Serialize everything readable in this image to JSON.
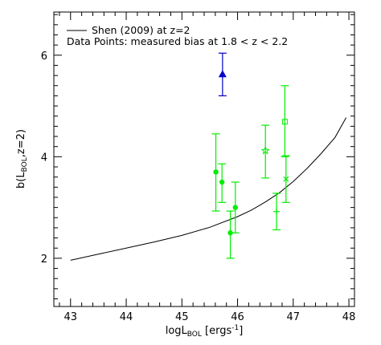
{
  "chart_data": {
    "type": "scatter",
    "title": "",
    "xlabel_main": "logL",
    "xlabel_sub": "BOL",
    "xlabel_tail": " [ergs",
    "xlabel_sup": "-1",
    "xlabel_close": "]",
    "ylabel_main": "b(L",
    "ylabel_sub": "BOL",
    "ylabel_tail": ",z=2)",
    "xlim": [
      42.7,
      48.1
    ],
    "ylim": [
      1.05,
      6.85
    ],
    "x_ticks": [
      43,
      44,
      45,
      46,
      47,
      48
    ],
    "x_tick_labels": [
      "43",
      "44",
      "45",
      "46",
      "47",
      "48"
    ],
    "y_ticks": [
      2,
      4,
      6
    ],
    "y_tick_labels": [
      "2",
      "4",
      "6"
    ],
    "legend": {
      "placement": "top-left",
      "line_entry": "Shen (2009) at z=2",
      "points_entry": "Data Points: measured bias at 1.8 < z < 2.2"
    },
    "model_curve": {
      "name": "Shen (2009) at z=2",
      "color": "#000000",
      "x": [
        43.0,
        43.5,
        44.0,
        44.5,
        45.0,
        45.5,
        46.0,
        46.25,
        46.5,
        46.75,
        47.0,
        47.25,
        47.5,
        47.75,
        47.95
      ],
      "y": [
        1.96,
        2.08,
        2.2,
        2.32,
        2.45,
        2.61,
        2.82,
        2.95,
        3.11,
        3.29,
        3.51,
        3.77,
        4.06,
        4.38,
        4.77
      ]
    },
    "series": [
      {
        "marker": "triangle-filled",
        "color": "#0000cc",
        "points": [
          {
            "x": 45.73,
            "y": 5.63,
            "ylo": 5.2,
            "yhi": 6.04
          }
        ]
      },
      {
        "marker": "circle-filled",
        "color": "#00ee00",
        "points": [
          {
            "x": 45.61,
            "y": 3.7,
            "ylo": 2.93,
            "yhi": 4.45
          },
          {
            "x": 45.72,
            "y": 3.5,
            "ylo": 3.1,
            "yhi": 3.86
          },
          {
            "x": 45.87,
            "y": 2.5,
            "ylo": 2.0,
            "yhi": 2.93
          },
          {
            "x": 45.96,
            "y": 3.0,
            "ylo": 2.5,
            "yhi": 3.5
          }
        ]
      },
      {
        "marker": "star-open",
        "color": "#00ee00",
        "points": [
          {
            "x": 46.5,
            "y": 4.12,
            "ylo": 3.58,
            "yhi": 4.62
          }
        ]
      },
      {
        "marker": "plus",
        "color": "#00ee00",
        "points": [
          {
            "x": 46.7,
            "y": 2.92,
            "ylo": 2.56,
            "yhi": 3.28
          }
        ]
      },
      {
        "marker": "square-open",
        "color": "#00ee00",
        "points": [
          {
            "x": 46.85,
            "y": 4.69,
            "ylo": 4.0,
            "yhi": 5.4
          }
        ]
      },
      {
        "marker": "x-cross",
        "color": "#00ee00",
        "points": [
          {
            "x": 46.87,
            "y": 3.56,
            "ylo": 3.1,
            "yhi": 4.02
          }
        ]
      }
    ],
    "grid": false
  }
}
